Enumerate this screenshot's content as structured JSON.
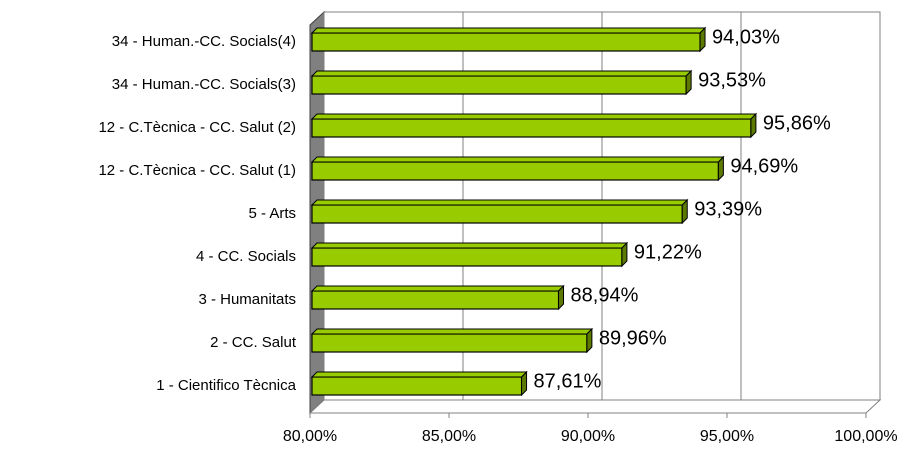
{
  "chart_data": {
    "type": "bar3d_horizontal",
    "categories": [
      "1 - Cientifico Tècnica",
      "2 - CC. Salut",
      "3 - Humanitats",
      "4 - CC. Socials",
      "5 - Arts",
      "12 - C.Tècnica - CC. Salut (1)",
      "12 - C.Tècnica - CC. Salut (2)",
      "34 - Human.-CC. Socials(3)",
      "34 - Human.-CC. Socials(4)"
    ],
    "values": [
      87.61,
      89.96,
      88.94,
      91.22,
      93.39,
      94.69,
      95.86,
      93.53,
      94.03
    ],
    "value_labels": [
      "87,61%",
      "89,96%",
      "88,94%",
      "91,22%",
      "93,39%",
      "94,69%",
      "95,86%",
      "93,53%",
      "94,03%"
    ],
    "color": "#99cc00",
    "xlim": [
      80,
      100
    ],
    "xticks": [
      {
        "value": 80,
        "label": "80,00%"
      },
      {
        "value": 85,
        "label": "85,00%"
      },
      {
        "value": 90,
        "label": "90,00%"
      },
      {
        "value": 95,
        "label": "95,00%"
      },
      {
        "value": 100,
        "label": "100,00%"
      }
    ],
    "grid": true
  }
}
